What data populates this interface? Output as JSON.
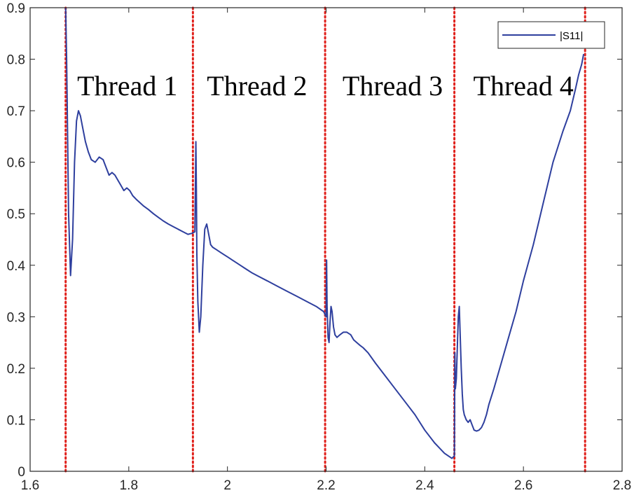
{
  "chart_data": {
    "type": "line",
    "title": "",
    "xlabel": "",
    "ylabel": "",
    "xlim": [
      1.6,
      2.8
    ],
    "ylim": [
      0,
      0.9
    ],
    "xticks": [
      1.6,
      1.8,
      2.0,
      2.2,
      2.4,
      2.6,
      2.8
    ],
    "xtick_labels": [
      "1.6",
      "1.8",
      "2",
      "2.2",
      "2.4",
      "2.6",
      "2.8"
    ],
    "yticks": [
      0,
      0.1,
      0.2,
      0.3,
      0.4,
      0.5,
      0.6,
      0.7,
      0.8,
      0.9
    ],
    "ytick_labels": [
      "0",
      "0.1",
      "0.2",
      "0.3",
      "0.4",
      "0.5",
      "0.6",
      "0.7",
      "0.8",
      "0.9"
    ],
    "grid": false,
    "legend": {
      "position": "top-right",
      "entries": [
        "|S11|"
      ]
    },
    "series": [
      {
        "name": "|S11|",
        "color": "#2e3f9e",
        "x": [
          1.672,
          1.674,
          1.676,
          1.678,
          1.682,
          1.686,
          1.69,
          1.694,
          1.698,
          1.702,
          1.706,
          1.712,
          1.718,
          1.724,
          1.732,
          1.74,
          1.748,
          1.754,
          1.76,
          1.766,
          1.772,
          1.778,
          1.784,
          1.79,
          1.796,
          1.802,
          1.808,
          1.815,
          1.822,
          1.83,
          1.84,
          1.85,
          1.86,
          1.87,
          1.88,
          1.89,
          1.9,
          1.91,
          1.92,
          1.928,
          1.934,
          1.935,
          1.936,
          1.937,
          1.938,
          1.94,
          1.943,
          1.946,
          1.95,
          1.954,
          1.958,
          1.962,
          1.966,
          1.97,
          1.978,
          1.986,
          1.994,
          2.002,
          2.01,
          2.018,
          2.026,
          2.034,
          2.042,
          2.05,
          2.06,
          2.08,
          2.1,
          2.12,
          2.14,
          2.16,
          2.18,
          2.195,
          2.2,
          2.201,
          2.202,
          2.204,
          2.206,
          2.208,
          2.21,
          2.212,
          2.215,
          2.218,
          2.222,
          2.228,
          2.235,
          2.242,
          2.25,
          2.256,
          2.262,
          2.268,
          2.275,
          2.285,
          2.3,
          2.32,
          2.34,
          2.36,
          2.38,
          2.4,
          2.42,
          2.44,
          2.455,
          2.46,
          2.461,
          2.462,
          2.464,
          2.466,
          2.468,
          2.47,
          2.472,
          2.474,
          2.476,
          2.478,
          2.48,
          2.484,
          2.488,
          2.492,
          2.496,
          2.5,
          2.505,
          2.51,
          2.515,
          2.52,
          2.525,
          2.53,
          2.54,
          2.555,
          2.57,
          2.585,
          2.6,
          2.62,
          2.64,
          2.66,
          2.68,
          2.695,
          2.705,
          2.712,
          2.718,
          2.722
        ],
        "y": [
          0.9,
          0.8,
          0.65,
          0.5,
          0.38,
          0.45,
          0.6,
          0.68,
          0.7,
          0.69,
          0.67,
          0.64,
          0.62,
          0.605,
          0.6,
          0.61,
          0.605,
          0.59,
          0.575,
          0.58,
          0.575,
          0.565,
          0.555,
          0.545,
          0.55,
          0.545,
          0.535,
          0.528,
          0.522,
          0.515,
          0.508,
          0.5,
          0.493,
          0.486,
          0.48,
          0.475,
          0.47,
          0.465,
          0.46,
          0.462,
          0.465,
          0.55,
          0.64,
          0.55,
          0.42,
          0.33,
          0.27,
          0.3,
          0.4,
          0.47,
          0.48,
          0.46,
          0.44,
          0.435,
          0.43,
          0.425,
          0.42,
          0.415,
          0.41,
          0.405,
          0.4,
          0.395,
          0.39,
          0.385,
          0.38,
          0.37,
          0.36,
          0.35,
          0.34,
          0.33,
          0.32,
          0.31,
          0.3,
          0.41,
          0.32,
          0.26,
          0.25,
          0.29,
          0.32,
          0.31,
          0.28,
          0.265,
          0.26,
          0.265,
          0.27,
          0.27,
          0.265,
          0.255,
          0.25,
          0.245,
          0.24,
          0.23,
          0.21,
          0.185,
          0.16,
          0.135,
          0.11,
          0.08,
          0.055,
          0.035,
          0.025,
          0.03,
          0.23,
          0.16,
          0.18,
          0.24,
          0.3,
          0.32,
          0.26,
          0.2,
          0.15,
          0.12,
          0.11,
          0.1,
          0.095,
          0.1,
          0.09,
          0.08,
          0.078,
          0.08,
          0.085,
          0.095,
          0.11,
          0.13,
          0.16,
          0.21,
          0.26,
          0.31,
          0.37,
          0.44,
          0.52,
          0.6,
          0.66,
          0.7,
          0.74,
          0.77,
          0.79,
          0.81
        ]
      }
    ],
    "vlines": {
      "x": [
        1.672,
        1.93,
        2.198,
        2.46,
        2.725
      ],
      "color": "#e0201b",
      "style": "dotted"
    },
    "annotations": [
      {
        "text": "Thread 1",
        "x": 1.797,
        "y": 0.73
      },
      {
        "text": "Thread 2",
        "x": 2.06,
        "y": 0.73
      },
      {
        "text": "Thread 3",
        "x": 2.335,
        "y": 0.73
      },
      {
        "text": "Thread 4",
        "x": 2.6,
        "y": 0.73
      }
    ],
    "axis_color": "#262626"
  }
}
